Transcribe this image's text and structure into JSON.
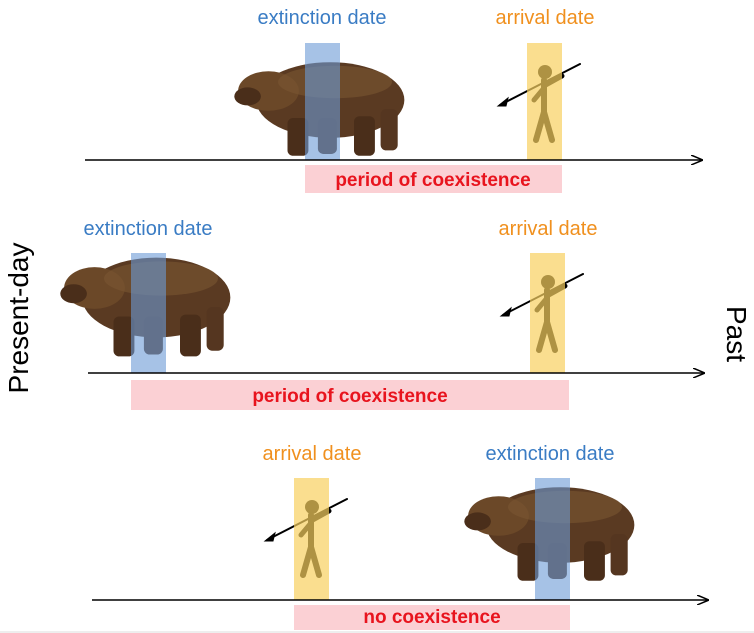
{
  "panels": [
    {
      "extinction_label": "extinction date",
      "arrival_label": "arrival date",
      "span_label": "period of coexistence"
    },
    {
      "extinction_label": "extinction date",
      "arrival_label": "arrival date",
      "span_label": "period of coexistence"
    },
    {
      "arrival_label": "arrival date",
      "extinction_label": "extinction date",
      "span_label": "no coexistence"
    }
  ],
  "side_labels": {
    "left": "Present-day",
    "right": "Past"
  }
}
